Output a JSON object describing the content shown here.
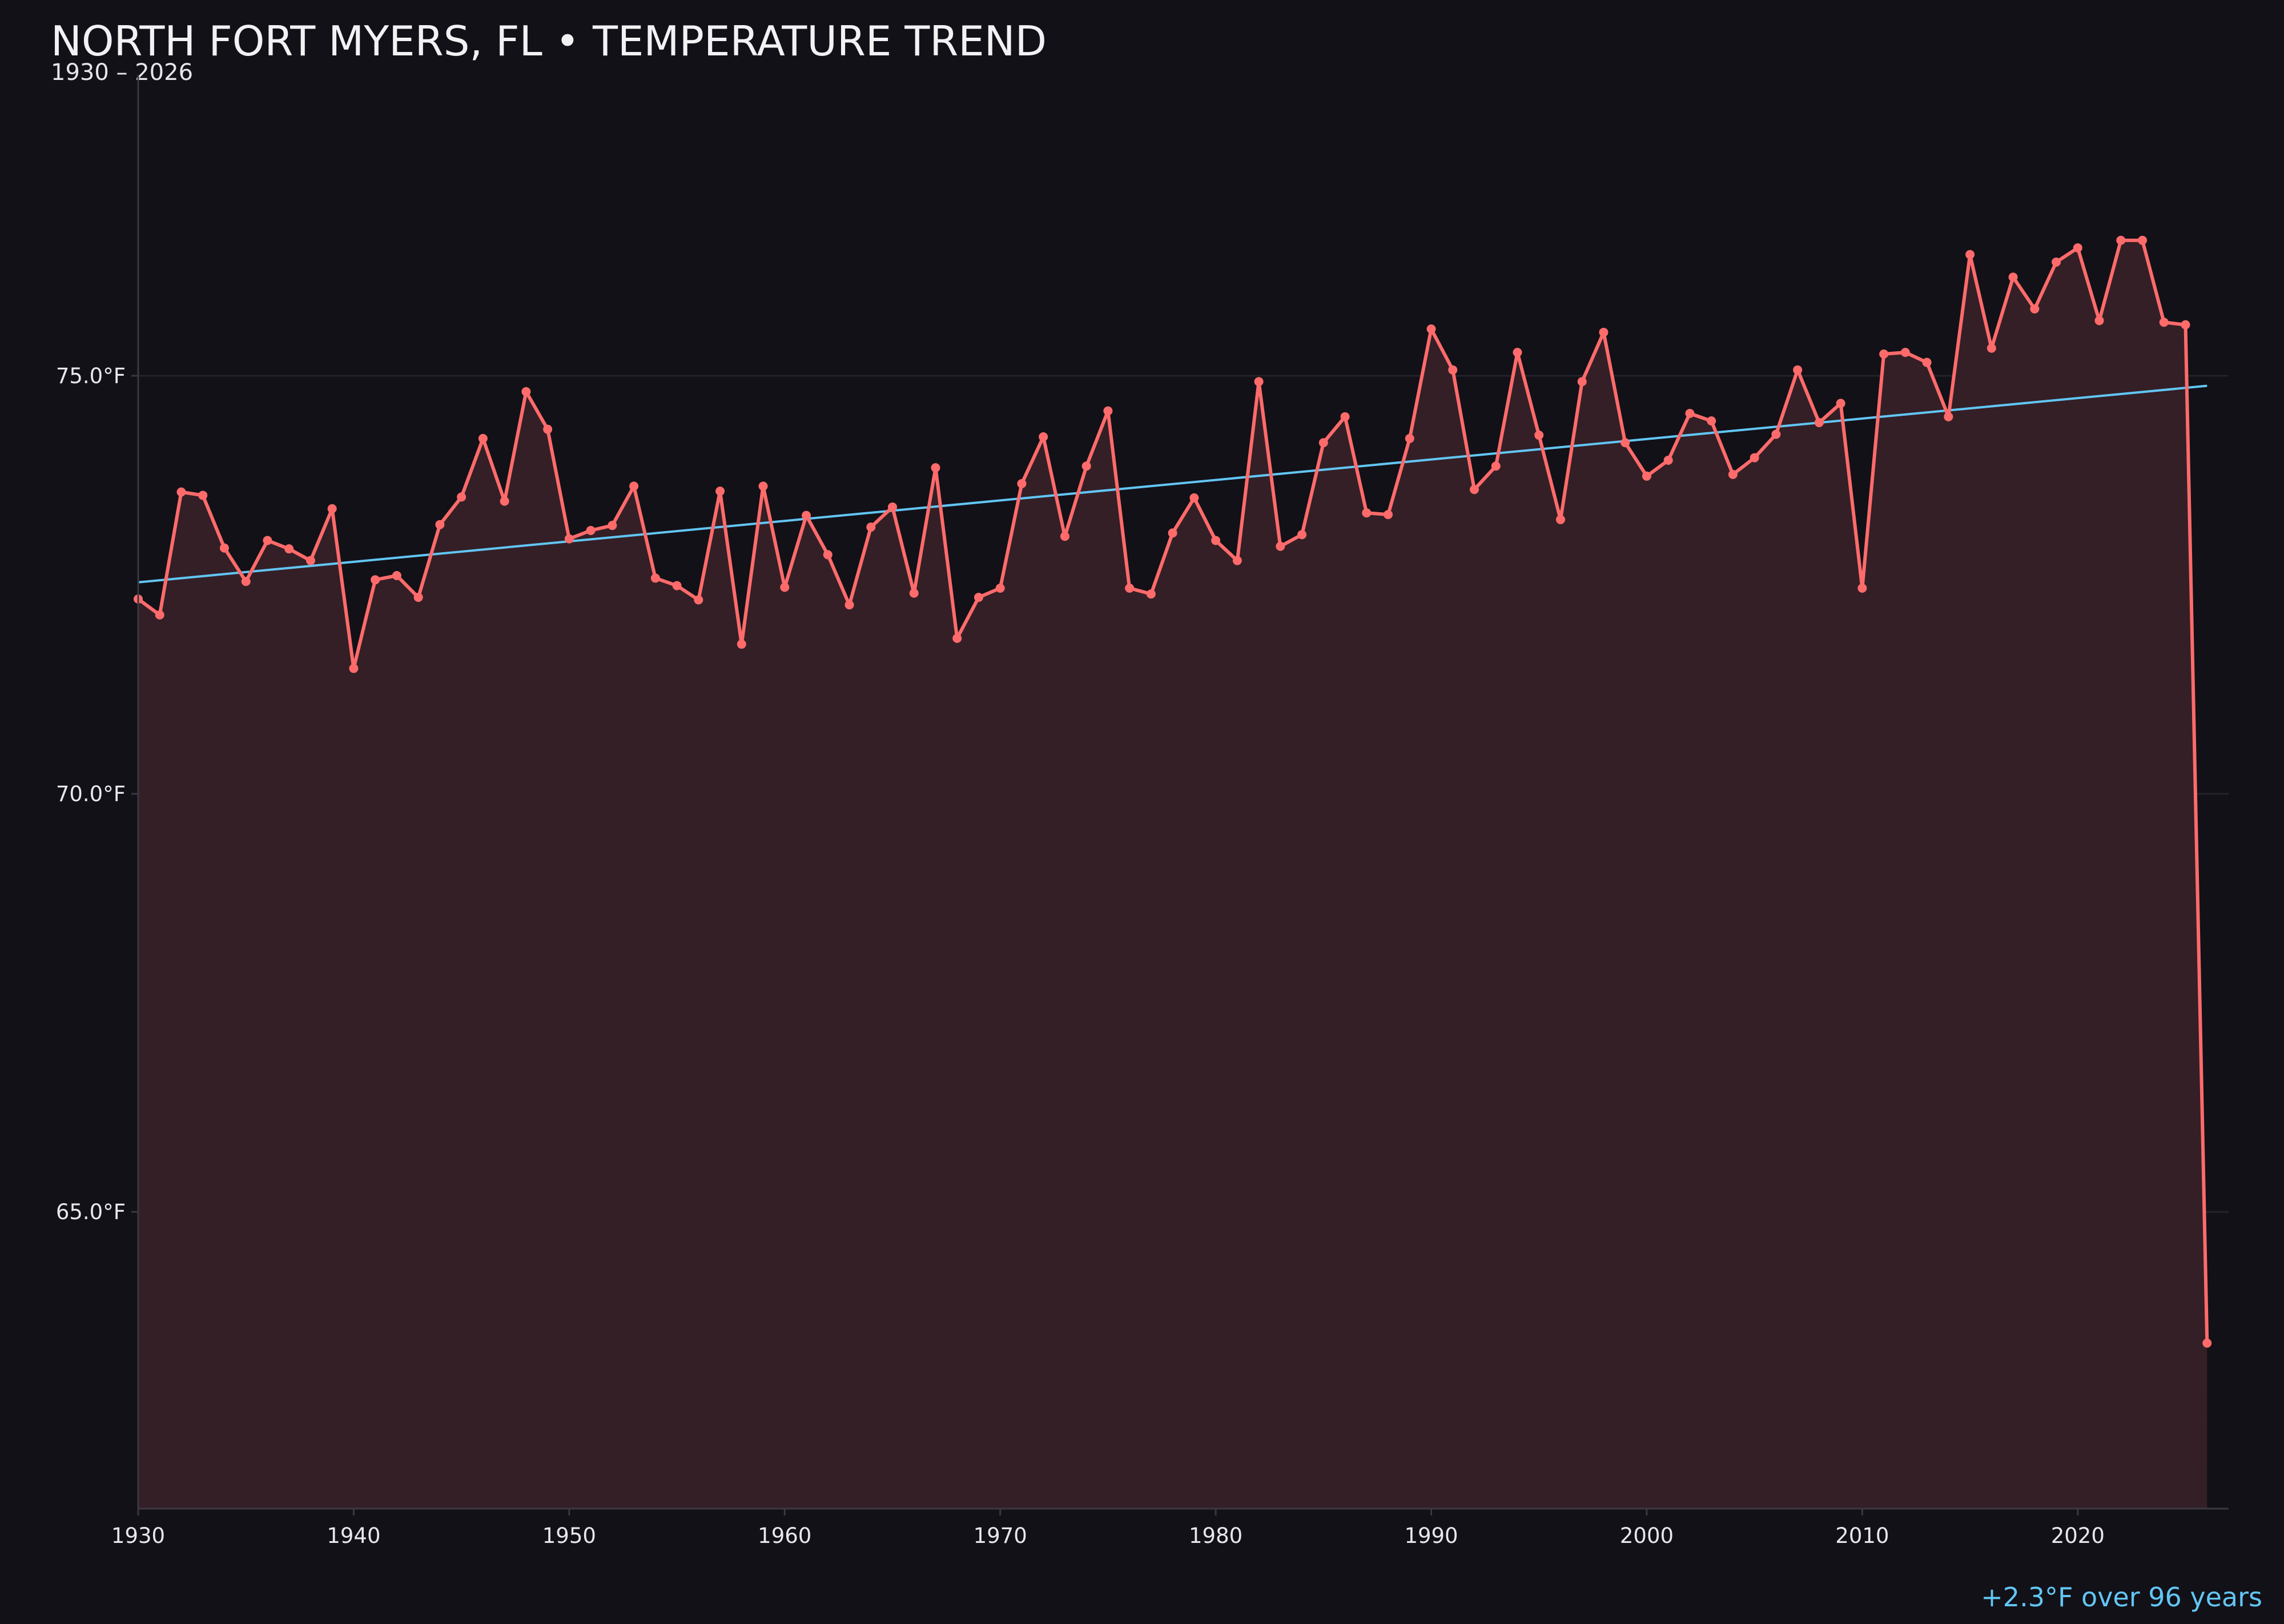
{
  "chart_data": {
    "type": "line",
    "title": "NORTH FORT MYERS, FL • TEMPERATURE TREND",
    "subtitle": "1930 – 2026",
    "xlabel": "",
    "ylabel": "",
    "annotation": "+2.3°F over 96 years",
    "xlim": [
      1930,
      2027
    ],
    "ylim": [
      61.45,
      78.6
    ],
    "x_ticks": [
      1930,
      1940,
      1950,
      1960,
      1970,
      1980,
      1990,
      2000,
      2010,
      2020
    ],
    "x_tick_labels": [
      "1930",
      "1940",
      "1950",
      "1960",
      "1970",
      "1980",
      "1990",
      "2000",
      "2010",
      "2020"
    ],
    "y_ticks": [
      65,
      70,
      75
    ],
    "y_tick_labels": [
      "65.0°F",
      "70.0°F",
      "75.0°F"
    ],
    "grid": "horizontal",
    "x": [
      1930,
      1931,
      1932,
      1933,
      1934,
      1935,
      1936,
      1937,
      1938,
      1939,
      1940,
      1941,
      1942,
      1943,
      1944,
      1945,
      1946,
      1947,
      1948,
      1949,
      1950,
      1951,
      1952,
      1953,
      1954,
      1955,
      1956,
      1957,
      1958,
      1959,
      1960,
      1961,
      1962,
      1963,
      1964,
      1965,
      1966,
      1967,
      1968,
      1969,
      1970,
      1971,
      1972,
      1973,
      1974,
      1975,
      1976,
      1977,
      1978,
      1979,
      1980,
      1981,
      1982,
      1983,
      1984,
      1985,
      1986,
      1987,
      1988,
      1989,
      1990,
      1991,
      1992,
      1993,
      1994,
      1995,
      1996,
      1997,
      1998,
      1999,
      2000,
      2001,
      2002,
      2003,
      2004,
      2005,
      2006,
      2007,
      2008,
      2009,
      2010,
      2011,
      2012,
      2013,
      2014,
      2015,
      2016,
      2017,
      2018,
      2019,
      2020,
      2021,
      2022,
      2023,
      2024,
      2025,
      2026
    ],
    "series": [
      {
        "type": "line-area",
        "color": "#ff6b6b",
        "fill": "#341f26",
        "values": [
          72.33,
          72.14,
          73.61,
          73.57,
          72.94,
          72.54,
          73.03,
          72.93,
          72.79,
          73.41,
          71.5,
          72.56,
          72.61,
          72.35,
          73.22,
          73.55,
          74.25,
          73.5,
          74.81,
          74.36,
          73.05,
          73.15,
          73.21,
          73.68,
          72.58,
          72.49,
          72.32,
          73.62,
          71.79,
          73.68,
          72.47,
          73.33,
          72.86,
          72.26,
          73.19,
          73.43,
          72.4,
          73.9,
          71.86,
          72.35,
          72.46,
          73.71,
          74.27,
          73.08,
          73.92,
          74.58,
          72.46,
          72.39,
          73.12,
          73.54,
          73.03,
          72.79,
          74.93,
          72.96,
          73.1,
          74.2,
          74.51,
          73.36,
          73.34,
          74.25,
          75.56,
          75.07,
          73.64,
          73.92,
          75.28,
          74.29,
          73.28,
          74.93,
          75.52,
          74.2,
          73.8,
          73.99,
          74.55,
          74.46,
          73.82,
          74.02,
          74.3,
          75.07,
          74.44,
          74.67,
          72.46,
          75.26,
          75.28,
          75.16,
          74.51,
          76.45,
          75.33,
          76.18,
          75.8,
          76.36,
          76.53,
          75.66,
          76.62,
          76.62,
          75.64,
          75.61,
          63.43
        ]
      },
      {
        "type": "trend",
        "color": "#62c6f5",
        "x": [
          1930,
          2026
        ],
        "values": [
          72.53,
          74.88
        ]
      }
    ],
    "colors": {
      "background": "#121117",
      "grid": "#24222a",
      "axis": "#3a3840",
      "text": "#e8e8ec"
    }
  }
}
